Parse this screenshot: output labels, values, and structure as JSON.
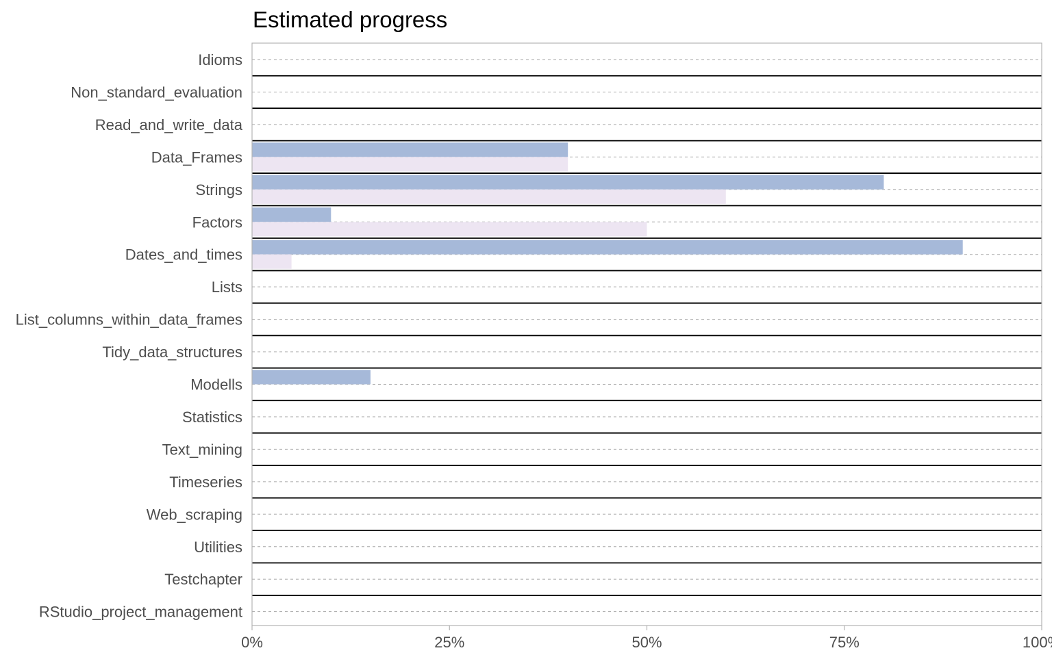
{
  "chart_data": {
    "type": "bar",
    "orientation": "horizontal",
    "title": "Estimated progress",
    "xlabel": "",
    "ylabel": "",
    "xlim": [
      0,
      1
    ],
    "grid": "horizontal dashed at categories, solid separators between categories",
    "legend": "none",
    "categories": [
      "Idioms",
      "Non_standard_evaluation",
      "Read_and_write_data",
      "Data_Frames",
      "Strings",
      "Factors",
      "Dates_and_times",
      "Lists",
      "List_columns_within_data_frames",
      "Tidy_data_structures",
      "Modells",
      "Statistics",
      "Text_mining",
      "Timeseries",
      "Web_scraping",
      "Utilities",
      "Testchapter",
      "RStudio_project_management"
    ],
    "series": [
      {
        "color": "#a6b9d9",
        "values": [
          0,
          0,
          0,
          0.4,
          0.8,
          0.1,
          0.9,
          0,
          0,
          0,
          0.15,
          0,
          0,
          0,
          0,
          0,
          0,
          0
        ]
      },
      {
        "color": "#ede5f2",
        "values": [
          0,
          0,
          0,
          0.4,
          0.6,
          0.5,
          0.05,
          0,
          0,
          0,
          0,
          0,
          0,
          0,
          0,
          0,
          0,
          0
        ]
      }
    ],
    "xticks": [
      {
        "value": 0,
        "label": "0%"
      },
      {
        "value": 0.25,
        "label": "25%"
      },
      {
        "value": 0.5,
        "label": "50%"
      },
      {
        "value": 0.75,
        "label": "75%"
      },
      {
        "value": 1,
        "label": "100%"
      }
    ]
  }
}
